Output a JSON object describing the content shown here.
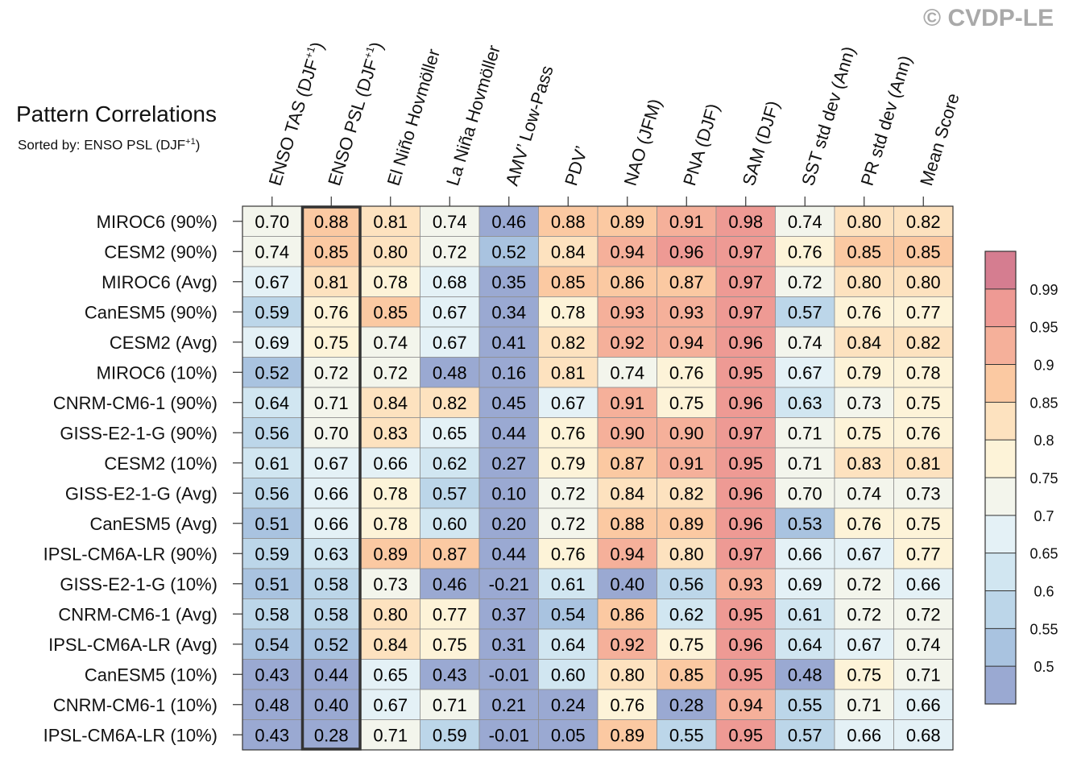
{
  "title": "Pattern Correlations",
  "subtitle_prefix": "Sorted by: ENSO PSL (DJF",
  "subtitle_sup": "+1",
  "subtitle_suffix": ")",
  "watermark": "© CVDP-LE",
  "chart_data": {
    "type": "heatmap",
    "columns": [
      {
        "label": "ENSO TAS (DJF",
        "sup": "+1",
        "suffix": ")"
      },
      {
        "label": "ENSO PSL (DJF",
        "sup": "+1",
        "suffix": ")"
      },
      {
        "label": "El Niño Hovmöller",
        "sup": "",
        "suffix": ""
      },
      {
        "label": "La Niña Hovmöller",
        "sup": "",
        "suffix": ""
      },
      {
        "label": "AMV’ Low-Pass",
        "sup": "",
        "suffix": ""
      },
      {
        "label": "PDV’",
        "sup": "",
        "suffix": ""
      },
      {
        "label": "NAO (JFM)",
        "sup": "",
        "suffix": ""
      },
      {
        "label": "PNA (DJF)",
        "sup": "",
        "suffix": ""
      },
      {
        "label": "SAM (DJF)",
        "sup": "",
        "suffix": ""
      },
      {
        "label": "SST std dev (Ann)",
        "sup": "",
        "suffix": ""
      },
      {
        "label": "PR std dev (Ann)",
        "sup": "",
        "suffix": ""
      },
      {
        "label": "Mean Score",
        "sup": "",
        "suffix": ""
      }
    ],
    "rows": [
      "MIROC6 (90%)",
      "CESM2 (90%)",
      "MIROC6 (Avg)",
      "CanESM5 (90%)",
      "CESM2 (Avg)",
      "MIROC6 (10%)",
      "CNRM-CM6-1 (90%)",
      "GISS-E2-1-G (90%)",
      "CESM2 (10%)",
      "GISS-E2-1-G (Avg)",
      "CanESM5 (Avg)",
      "IPSL-CM6A-LR (90%)",
      "GISS-E2-1-G (10%)",
      "CNRM-CM6-1 (Avg)",
      "IPSL-CM6A-LR (Avg)",
      "CanESM5 (10%)",
      "CNRM-CM6-1 (10%)",
      "IPSL-CM6A-LR (10%)"
    ],
    "values": [
      [
        "0.70",
        "0.88",
        "0.81",
        "0.74",
        "0.46",
        "0.88",
        "0.89",
        "0.91",
        "0.98",
        "0.74",
        "0.80",
        "0.82"
      ],
      [
        "0.74",
        "0.85",
        "0.80",
        "0.72",
        "0.52",
        "0.84",
        "0.94",
        "0.96",
        "0.97",
        "0.76",
        "0.85",
        "0.85"
      ],
      [
        "0.67",
        "0.81",
        "0.78",
        "0.68",
        "0.35",
        "0.85",
        "0.86",
        "0.87",
        "0.97",
        "0.72",
        "0.80",
        "0.80"
      ],
      [
        "0.59",
        "0.76",
        "0.85",
        "0.67",
        "0.34",
        "0.78",
        "0.93",
        "0.93",
        "0.97",
        "0.57",
        "0.76",
        "0.77"
      ],
      [
        "0.69",
        "0.75",
        "0.74",
        "0.67",
        "0.41",
        "0.82",
        "0.92",
        "0.94",
        "0.96",
        "0.74",
        "0.84",
        "0.82"
      ],
      [
        "0.52",
        "0.72",
        "0.72",
        "0.48",
        "0.16",
        "0.81",
        "0.74",
        "0.76",
        "0.95",
        "0.67",
        "0.79",
        "0.78"
      ],
      [
        "0.64",
        "0.71",
        "0.84",
        "0.82",
        "0.45",
        "0.67",
        "0.91",
        "0.75",
        "0.96",
        "0.63",
        "0.73",
        "0.75"
      ],
      [
        "0.56",
        "0.70",
        "0.83",
        "0.65",
        "0.44",
        "0.76",
        "0.90",
        "0.90",
        "0.97",
        "0.71",
        "0.75",
        "0.76"
      ],
      [
        "0.61",
        "0.67",
        "0.66",
        "0.62",
        "0.27",
        "0.79",
        "0.87",
        "0.91",
        "0.95",
        "0.71",
        "0.83",
        "0.81"
      ],
      [
        "0.56",
        "0.66",
        "0.78",
        "0.57",
        "0.10",
        "0.72",
        "0.84",
        "0.82",
        "0.96",
        "0.70",
        "0.74",
        "0.73"
      ],
      [
        "0.51",
        "0.66",
        "0.78",
        "0.60",
        "0.20",
        "0.72",
        "0.88",
        "0.89",
        "0.96",
        "0.53",
        "0.76",
        "0.75"
      ],
      [
        "0.59",
        "0.63",
        "0.89",
        "0.87",
        "0.44",
        "0.76",
        "0.94",
        "0.80",
        "0.97",
        "0.66",
        "0.67",
        "0.77"
      ],
      [
        "0.51",
        "0.58",
        "0.73",
        "0.46",
        "-0.21",
        "0.61",
        "0.40",
        "0.56",
        "0.93",
        "0.69",
        "0.72",
        "0.66"
      ],
      [
        "0.58",
        "0.58",
        "0.80",
        "0.77",
        "0.37",
        "0.54",
        "0.86",
        "0.62",
        "0.95",
        "0.61",
        "0.72",
        "0.72"
      ],
      [
        "0.54",
        "0.52",
        "0.84",
        "0.75",
        "0.31",
        "0.64",
        "0.92",
        "0.75",
        "0.96",
        "0.64",
        "0.67",
        "0.74"
      ],
      [
        "0.43",
        "0.44",
        "0.65",
        "0.43",
        "-0.01",
        "0.60",
        "0.80",
        "0.85",
        "0.95",
        "0.48",
        "0.75",
        "0.71"
      ],
      [
        "0.48",
        "0.40",
        "0.67",
        "0.71",
        "0.21",
        "0.24",
        "0.76",
        "0.28",
        "0.94",
        "0.55",
        "0.71",
        "0.66"
      ],
      [
        "0.43",
        "0.28",
        "0.71",
        "0.59",
        "-0.01",
        "0.05",
        "0.89",
        "0.55",
        "0.95",
        "0.57",
        "0.66",
        "0.68"
      ]
    ],
    "highlight_column": 1,
    "colorbar": {
      "levels": [
        "0.5",
        "0.55",
        "0.6",
        "0.65",
        "0.7",
        "0.75",
        "0.8",
        "0.85",
        "0.9",
        "0.95",
        "0.99"
      ],
      "colors": [
        "#9aa9d2",
        "#a9c3e0",
        "#bcd6e9",
        "#d1e6f1",
        "#e4f1f6",
        "#f3f5ec",
        "#fdf3d8",
        "#fde2bf",
        "#fbc9a2",
        "#f5b09a",
        "#ee9a94",
        "#d57d90"
      ]
    }
  }
}
